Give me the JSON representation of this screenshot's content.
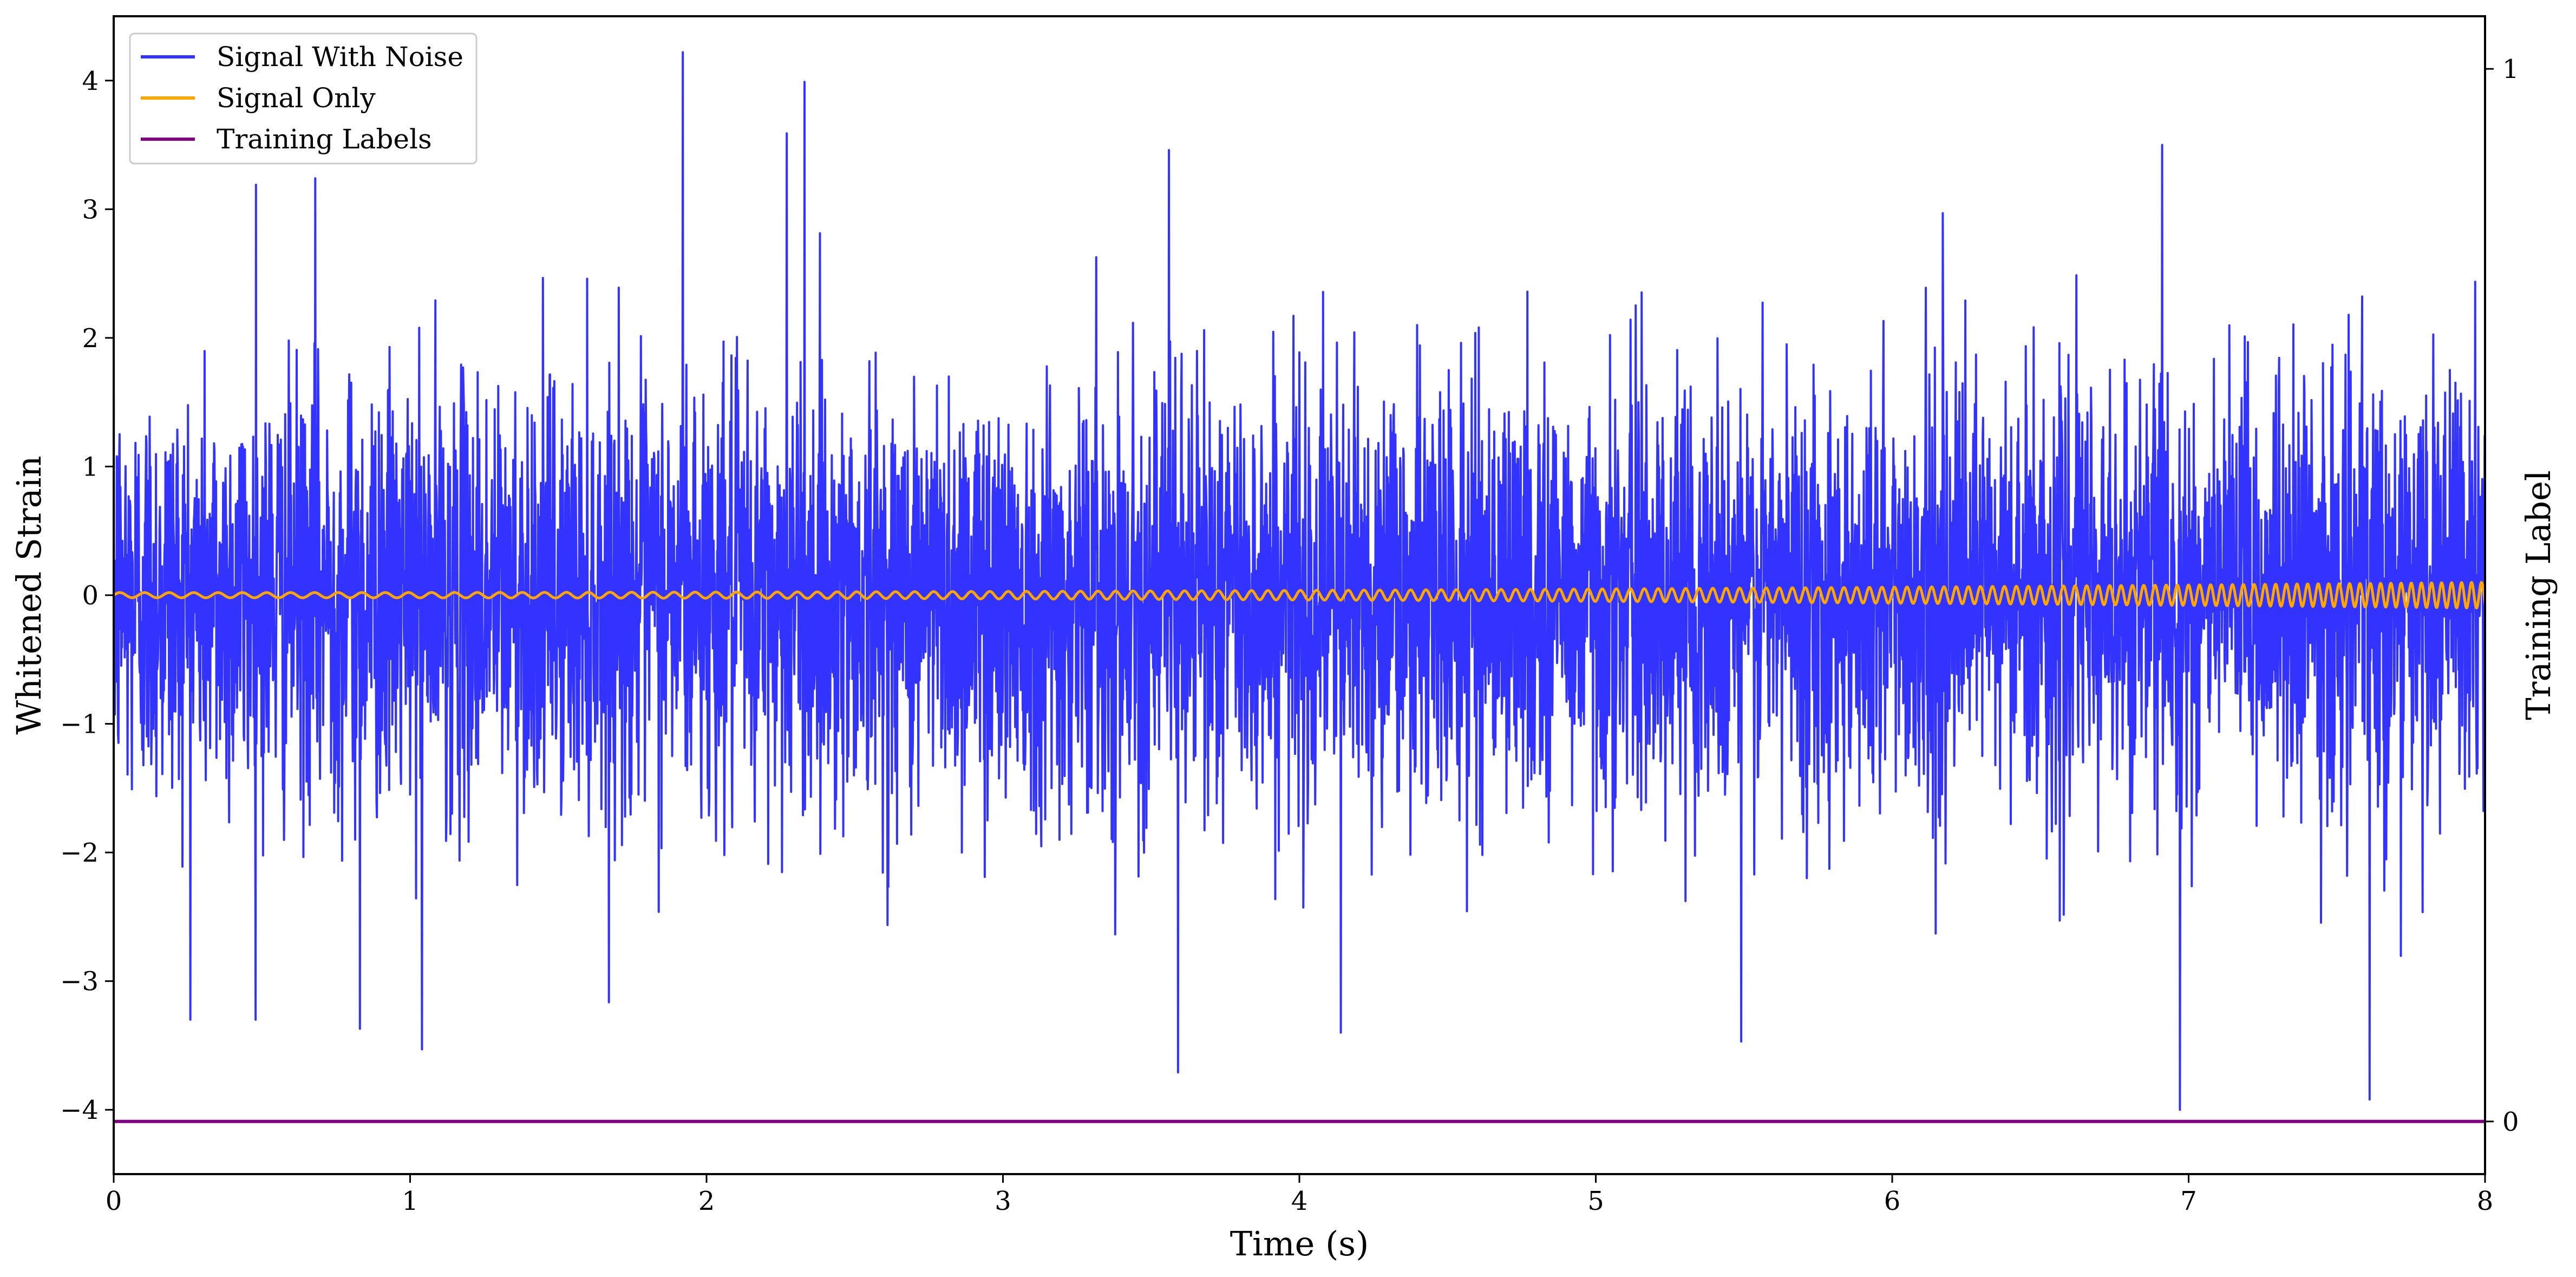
{
  "chart_data": {
    "type": "line",
    "xlabel": "Time (s)",
    "ylabel": "Whitened Strain",
    "ylabel_right": "Training Label",
    "xlim": [
      0,
      8
    ],
    "ylim": [
      -4.5,
      4.5
    ],
    "ylim_right": [
      -0.05,
      1.05
    ],
    "x_ticks": [
      "0",
      "1",
      "2",
      "3",
      "4",
      "5",
      "6",
      "7",
      "8"
    ],
    "y_ticks": [
      "4",
      "3",
      "2",
      "1",
      "0",
      "−1",
      "−2",
      "−3",
      "−4"
    ],
    "y_right_ticks": [
      "1",
      "0"
    ],
    "legend_position": "upper-left",
    "grid": false,
    "series": [
      {
        "name": "Signal With Noise",
        "color": "#3333ff",
        "description_values": {
          "x_range": [
            0,
            8
          ],
          "typical_amplitude": 1.0,
          "peak_points": [
            [
              1.92,
              4.22
            ],
            [
              2.33,
              3.99
            ],
            [
              2.27,
              3.59
            ],
            [
              6.91,
              3.5
            ],
            [
              3.56,
              3.46
            ],
            [
              0.68,
              3.24
            ],
            [
              0.48,
              3.19
            ],
            [
              6.97,
              -4.0
            ],
            [
              7.61,
              -3.92
            ],
            [
              3.59,
              -3.71
            ],
            [
              1.04,
              -3.53
            ],
            [
              0.83,
              -3.37
            ],
            [
              4.14,
              -3.4
            ],
            [
              5.49,
              -3.47
            ]
          ]
        }
      },
      {
        "name": "Signal Only",
        "color": "#ffa500",
        "chirp": {
          "amplitude_start": 0.02,
          "amplitude_end": 0.1,
          "cycles_per_second_start": 12,
          "cycles_per_second_end": 30
        }
      },
      {
        "name": "Training Labels",
        "color": "#800080",
        "axis": "right",
        "x": [
          0,
          8
        ],
        "values": [
          0,
          0
        ]
      }
    ]
  }
}
